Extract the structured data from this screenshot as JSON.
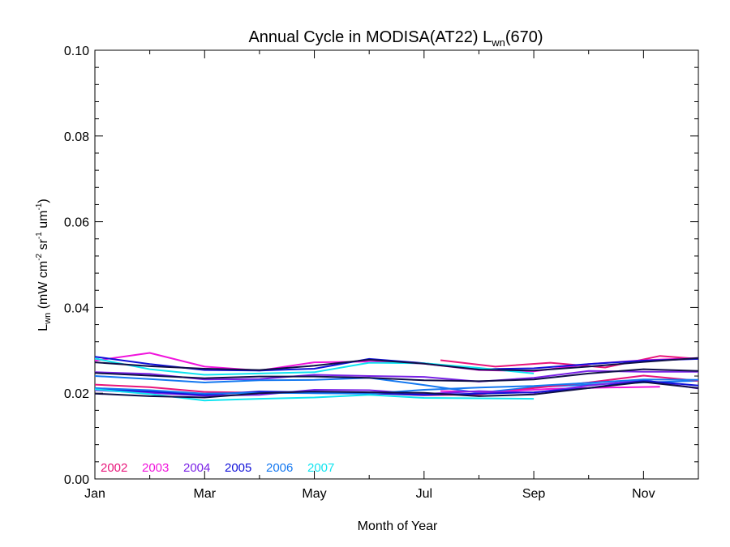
{
  "chart_data": {
    "type": "line",
    "title": "Annual Cycle in MODISA(AT22) L",
    "title_sub": "wn",
    "title_suffix": "(670)",
    "xlabel": "Month of Year",
    "ylabel": {
      "main": "L",
      "sub": "wn",
      "units_open": " (mW cm",
      "sup1": "-2",
      "mid1": " sr",
      "sup2": "-1",
      "mid2": " um",
      "sup3": "-1",
      "close": ")"
    },
    "xlim": [
      1,
      12
    ],
    "ylim": [
      0.0,
      0.1
    ],
    "x_ticks": [
      {
        "value": 1,
        "label": "Jan"
      },
      {
        "value": 3,
        "label": "Mar"
      },
      {
        "value": 5,
        "label": "May"
      },
      {
        "value": 7,
        "label": "Jul"
      },
      {
        "value": 9,
        "label": "Sep"
      },
      {
        "value": 11,
        "label": "Nov"
      }
    ],
    "y_ticks": [
      {
        "value": 0.0,
        "label": "0.00"
      },
      {
        "value": 0.02,
        "label": "0.02"
      },
      {
        "value": 0.04,
        "label": "0.04"
      },
      {
        "value": 0.06,
        "label": "0.06"
      },
      {
        "value": 0.08,
        "label": "0.08"
      },
      {
        "value": 0.1,
        "label": "0.10"
      }
    ],
    "grid": false,
    "legend_position": "bottom-left",
    "series": [
      {
        "name": "2002",
        "color": "#e8157a",
        "x": [
          7.3,
          8.3,
          9.3,
          10.3,
          11.3,
          12.0
        ],
        "y": [
          0.0277,
          0.0262,
          0.0271,
          0.026,
          0.0287,
          0.028
        ]
      },
      {
        "name": "2003",
        "color": "#f014dc",
        "x": [
          1,
          2,
          3,
          4,
          5,
          6,
          7,
          8,
          9,
          10,
          11,
          12
        ],
        "y": [
          0.0276,
          0.0294,
          0.0262,
          0.0253,
          0.0272,
          0.0274,
          0.0269,
          0.0254,
          0.0251,
          0.0268,
          0.0277,
          0.0282
        ]
      },
      {
        "name": "2004",
        "color": "#7a22e6",
        "x": [
          1,
          2,
          3,
          4,
          5,
          6,
          7,
          8,
          9,
          10,
          11,
          12
        ],
        "y": [
          0.0249,
          0.0245,
          0.0232,
          0.0233,
          0.0243,
          0.024,
          0.0238,
          0.0227,
          0.0236,
          0.0252,
          0.025,
          0.025
        ]
      },
      {
        "name": "2005",
        "color": "#1010d8",
        "x": [
          1,
          2,
          3,
          4,
          5,
          6,
          7,
          8,
          9,
          10,
          11,
          12
        ],
        "y": [
          0.0285,
          0.0268,
          0.0254,
          0.0253,
          0.0257,
          0.028,
          0.027,
          0.0256,
          0.0258,
          0.0268,
          0.0276,
          0.028
        ]
      },
      {
        "name": "2006",
        "color": "#1478f0",
        "x": [
          1,
          2,
          3,
          4,
          5,
          6,
          7,
          8,
          9,
          10,
          11,
          12
        ],
        "y": [
          0.024,
          0.0233,
          0.0225,
          0.023,
          0.0231,
          0.0236,
          0.0219,
          0.0201,
          0.0214,
          0.022,
          0.0225,
          0.0229
        ]
      },
      {
        "name": "2007",
        "color": "#10e4f0",
        "x": [
          1,
          2,
          3,
          4,
          5,
          6,
          7,
          8,
          9
        ],
        "y": [
          0.0281,
          0.0256,
          0.0243,
          0.0246,
          0.0249,
          0.0271,
          0.027,
          0.0259,
          0.0246
        ]
      },
      {
        "name": "",
        "color": "#e8157a",
        "x": [
          1,
          2,
          3,
          4,
          5,
          6,
          7,
          8,
          9,
          10,
          11,
          12
        ],
        "y": [
          0.022,
          0.0214,
          0.0203,
          0.0201,
          0.0202,
          0.02,
          0.0195,
          0.0197,
          0.0212,
          0.0225,
          0.0241,
          0.0229
        ]
      },
      {
        "name": "",
        "color": "#f014dc",
        "x": [
          7.3,
          8.3,
          9.3,
          10.3,
          11.3
        ],
        "y": [
          0.0205,
          0.0203,
          0.021,
          0.0213,
          0.0215
        ]
      },
      {
        "name": "",
        "color": "#7a22e6",
        "x": [
          1,
          2,
          3,
          4,
          5,
          6,
          7,
          8,
          9,
          10,
          11,
          12
        ],
        "y": [
          0.0207,
          0.0201,
          0.0194,
          0.0196,
          0.0208,
          0.0207,
          0.0198,
          0.0205,
          0.0201,
          0.0218,
          0.023,
          0.0211
        ]
      },
      {
        "name": "",
        "color": "#1010d8",
        "x": [
          1,
          2,
          3,
          4,
          5,
          6,
          7,
          8,
          9,
          10,
          11,
          12
        ],
        "y": [
          0.021,
          0.0204,
          0.0196,
          0.0204,
          0.0202,
          0.02,
          0.0196,
          0.0199,
          0.0202,
          0.0212,
          0.0229,
          0.0218
        ]
      },
      {
        "name": "",
        "color": "#1478f0",
        "x": [
          1,
          2,
          3,
          4,
          5,
          6,
          7,
          8,
          9,
          10,
          11,
          12
        ],
        "y": [
          0.0212,
          0.0207,
          0.0199,
          0.0201,
          0.02,
          0.0199,
          0.0208,
          0.0213,
          0.0217,
          0.0224,
          0.0232,
          0.0231
        ]
      },
      {
        "name": "",
        "color": "#10e4f0",
        "x": [
          1,
          2,
          3,
          4,
          5,
          6,
          7,
          8,
          9
        ],
        "y": [
          0.0209,
          0.0198,
          0.0183,
          0.0187,
          0.019,
          0.0196,
          0.0189,
          0.0188,
          0.0187
        ]
      },
      {
        "name": "",
        "color": "#101048",
        "x": [
          1,
          2,
          3,
          4,
          5,
          6,
          7,
          8,
          9,
          10,
          11,
          12
        ],
        "y": [
          0.0272,
          0.0263,
          0.0257,
          0.0254,
          0.0264,
          0.0278,
          0.0269,
          0.0255,
          0.0253,
          0.0262,
          0.0273,
          0.0282
        ]
      },
      {
        "name": "",
        "color": "#101048",
        "x": [
          1,
          2,
          3,
          4,
          5,
          6,
          7,
          8,
          9,
          10,
          11,
          12
        ],
        "y": [
          0.0247,
          0.0241,
          0.0235,
          0.0239,
          0.0239,
          0.0236,
          0.023,
          0.0228,
          0.0232,
          0.0246,
          0.0256,
          0.0252
        ]
      },
      {
        "name": "",
        "color": "#101048",
        "x": [
          1,
          2,
          3,
          4,
          5,
          6,
          7,
          8,
          9,
          10,
          11,
          12
        ],
        "y": [
          0.0199,
          0.0193,
          0.019,
          0.02,
          0.0204,
          0.0202,
          0.0201,
          0.0193,
          0.0197,
          0.0212,
          0.0226,
          0.0212
        ]
      }
    ]
  }
}
